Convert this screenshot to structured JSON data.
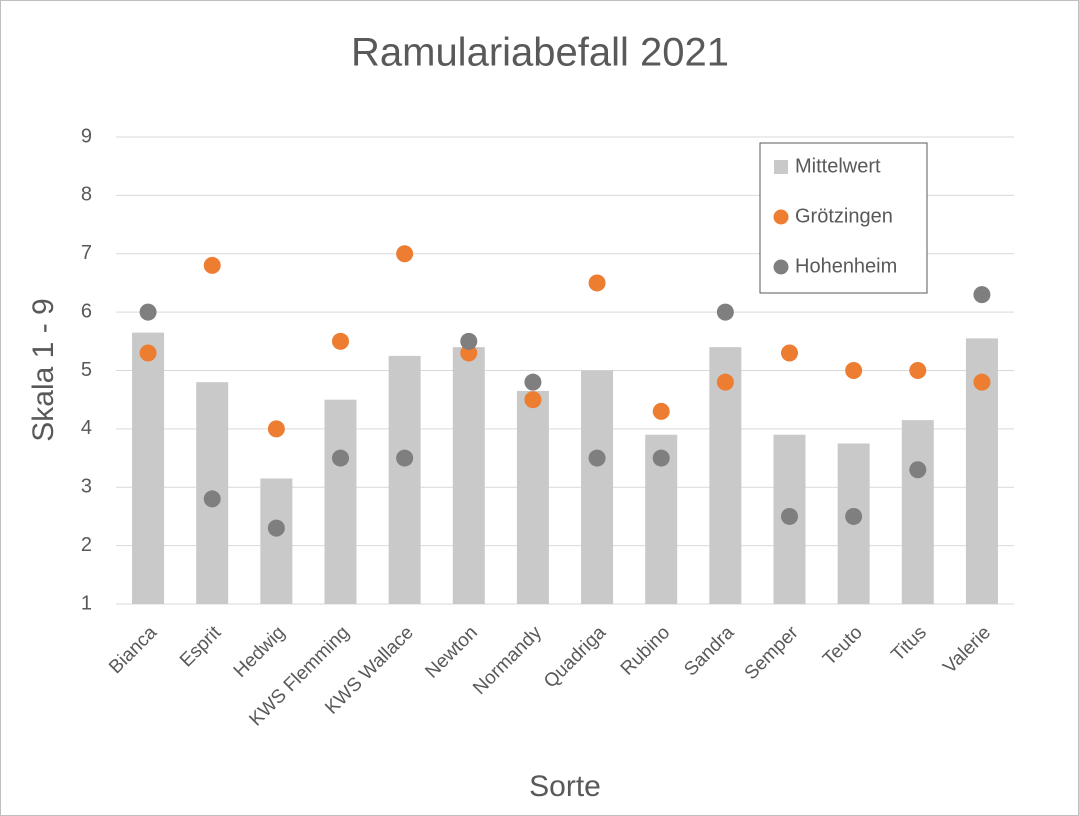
{
  "chart_data": {
    "type": "combo",
    "title": "Ramulariabefall 2021",
    "x_label": "Sorte",
    "y_label": "Skala 1 - 9",
    "categories": [
      "Bianca",
      "Esprit",
      "Hedwig",
      "KWS Flemming",
      "KWS Wallace",
      "Newton",
      "Normandy",
      "Quadriga",
      "Rubino",
      "Sandra",
      "Semper",
      "Teuto",
      "Titus",
      "Valerie"
    ],
    "series": [
      {
        "name": "Mittelwert",
        "type": "bar",
        "color": "#c9c9c9",
        "values": [
          5.65,
          4.8,
          3.15,
          4.5,
          5.25,
          5.4,
          4.65,
          5.0,
          3.9,
          5.4,
          3.9,
          3.75,
          4.15,
          5.55
        ]
      },
      {
        "name": "Grötzingen",
        "type": "scatter",
        "color": "#ed7d31",
        "values": [
          5.3,
          6.8,
          4.0,
          5.5,
          7.0,
          5.3,
          4.5,
          6.5,
          4.3,
          4.8,
          5.3,
          5.0,
          5.0,
          4.8
        ]
      },
      {
        "name": "Hohenheim",
        "type": "scatter",
        "color": "#7f7f7f",
        "values": [
          6.0,
          2.8,
          2.3,
          3.5,
          3.5,
          5.5,
          4.8,
          3.5,
          3.5,
          6.0,
          2.5,
          2.5,
          3.3,
          6.3
        ]
      }
    ],
    "ylim": [
      1,
      9
    ],
    "yticks": [
      1,
      2,
      3,
      4,
      5,
      6,
      7,
      8,
      9
    ],
    "grid": true,
    "legend": "top-right"
  }
}
